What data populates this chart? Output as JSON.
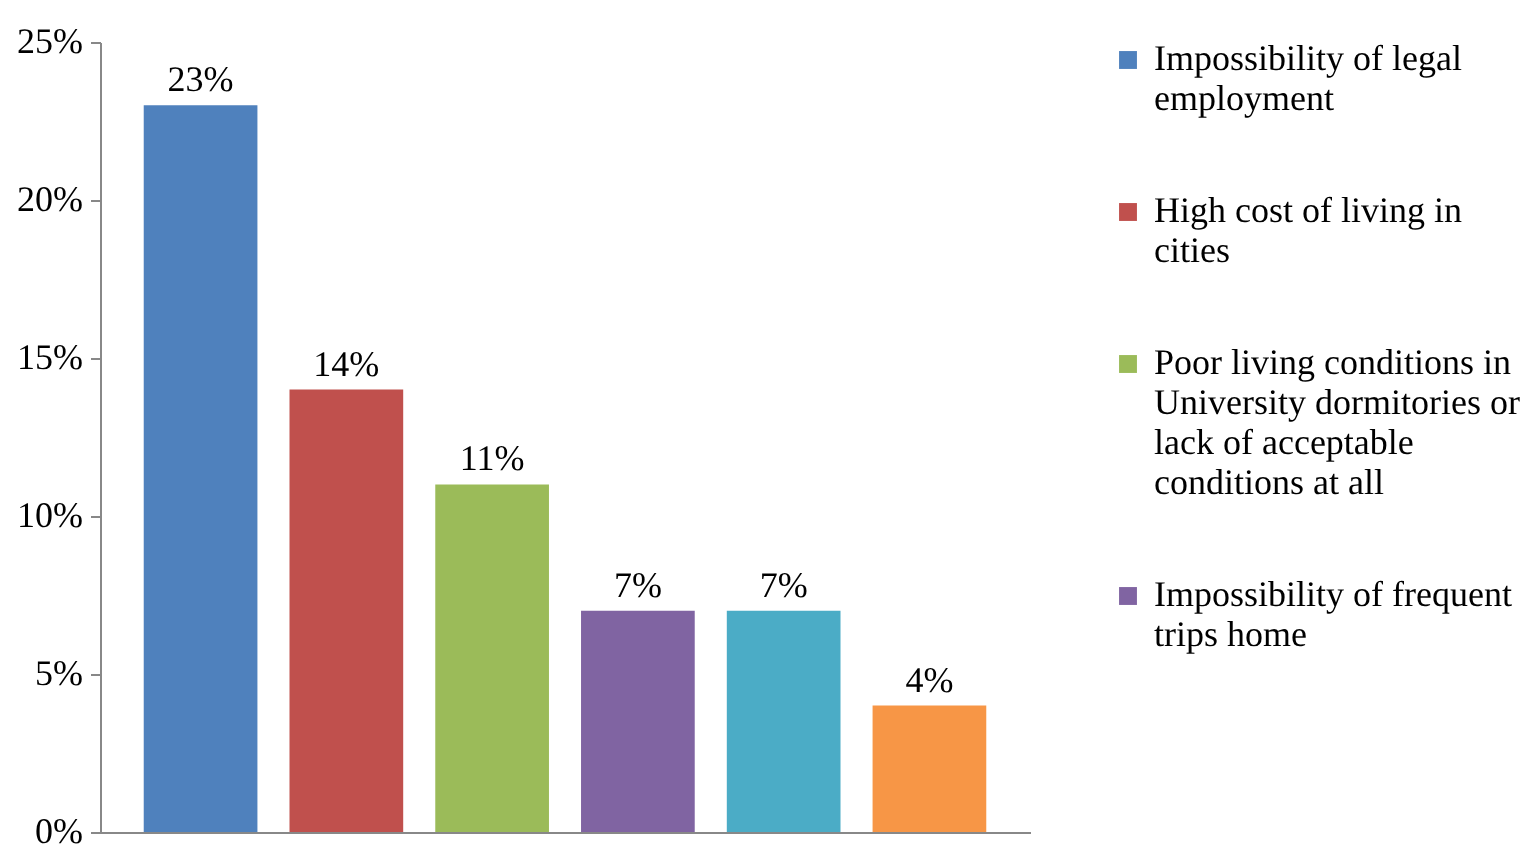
{
  "chart_data": {
    "type": "bar",
    "categories": [
      null,
      null,
      null,
      null,
      null,
      null
    ],
    "series": [
      {
        "name": "Impossibility of legal employment",
        "color": "#4f81bd",
        "values": [
          23,
          null,
          null,
          null,
          null,
          null
        ],
        "value_labels": [
          "23%",
          null,
          null,
          null,
          null,
          null
        ]
      },
      {
        "name": "High cost of living in cities",
        "color": "#c0504d",
        "values": [
          null,
          14,
          null,
          null,
          null,
          null
        ],
        "value_labels": [
          null,
          "14%",
          null,
          null,
          null,
          null
        ]
      },
      {
        "name": "Poor living conditions in University dormitories or lack of acceptable conditions at all",
        "color": "#9bbb59",
        "values": [
          null,
          null,
          11,
          null,
          null,
          null
        ],
        "value_labels": [
          null,
          null,
          "11%",
          null,
          null,
          null
        ]
      },
      {
        "name": "Impossibility of frequent trips home",
        "color": "#8064a2",
        "values": [
          null,
          null,
          null,
          7,
          null,
          null
        ],
        "value_labels": [
          null,
          null,
          null,
          "7%",
          null,
          null
        ]
      },
      {
        "color": "#4bacc6",
        "values": [
          null,
          null,
          null,
          null,
          7,
          null
        ],
        "value_labels": [
          null,
          null,
          null,
          null,
          "7%",
          null
        ]
      },
      {
        "color": "#f79646",
        "values": [
          null,
          null,
          null,
          null,
          null,
          4
        ],
        "value_labels": [
          null,
          null,
          null,
          null,
          null,
          "4%"
        ]
      }
    ],
    "ylim": [
      0,
      25
    ],
    "yticks": [
      {
        "value": 0,
        "label": "0%"
      },
      {
        "value": 5,
        "label": "5%"
      },
      {
        "value": 10,
        "label": "10%"
      },
      {
        "value": 15,
        "label": "15%"
      },
      {
        "value": 20,
        "label": "20%"
      },
      {
        "value": 25,
        "label": "25%"
      }
    ],
    "grid": false,
    "legend": "right"
  }
}
